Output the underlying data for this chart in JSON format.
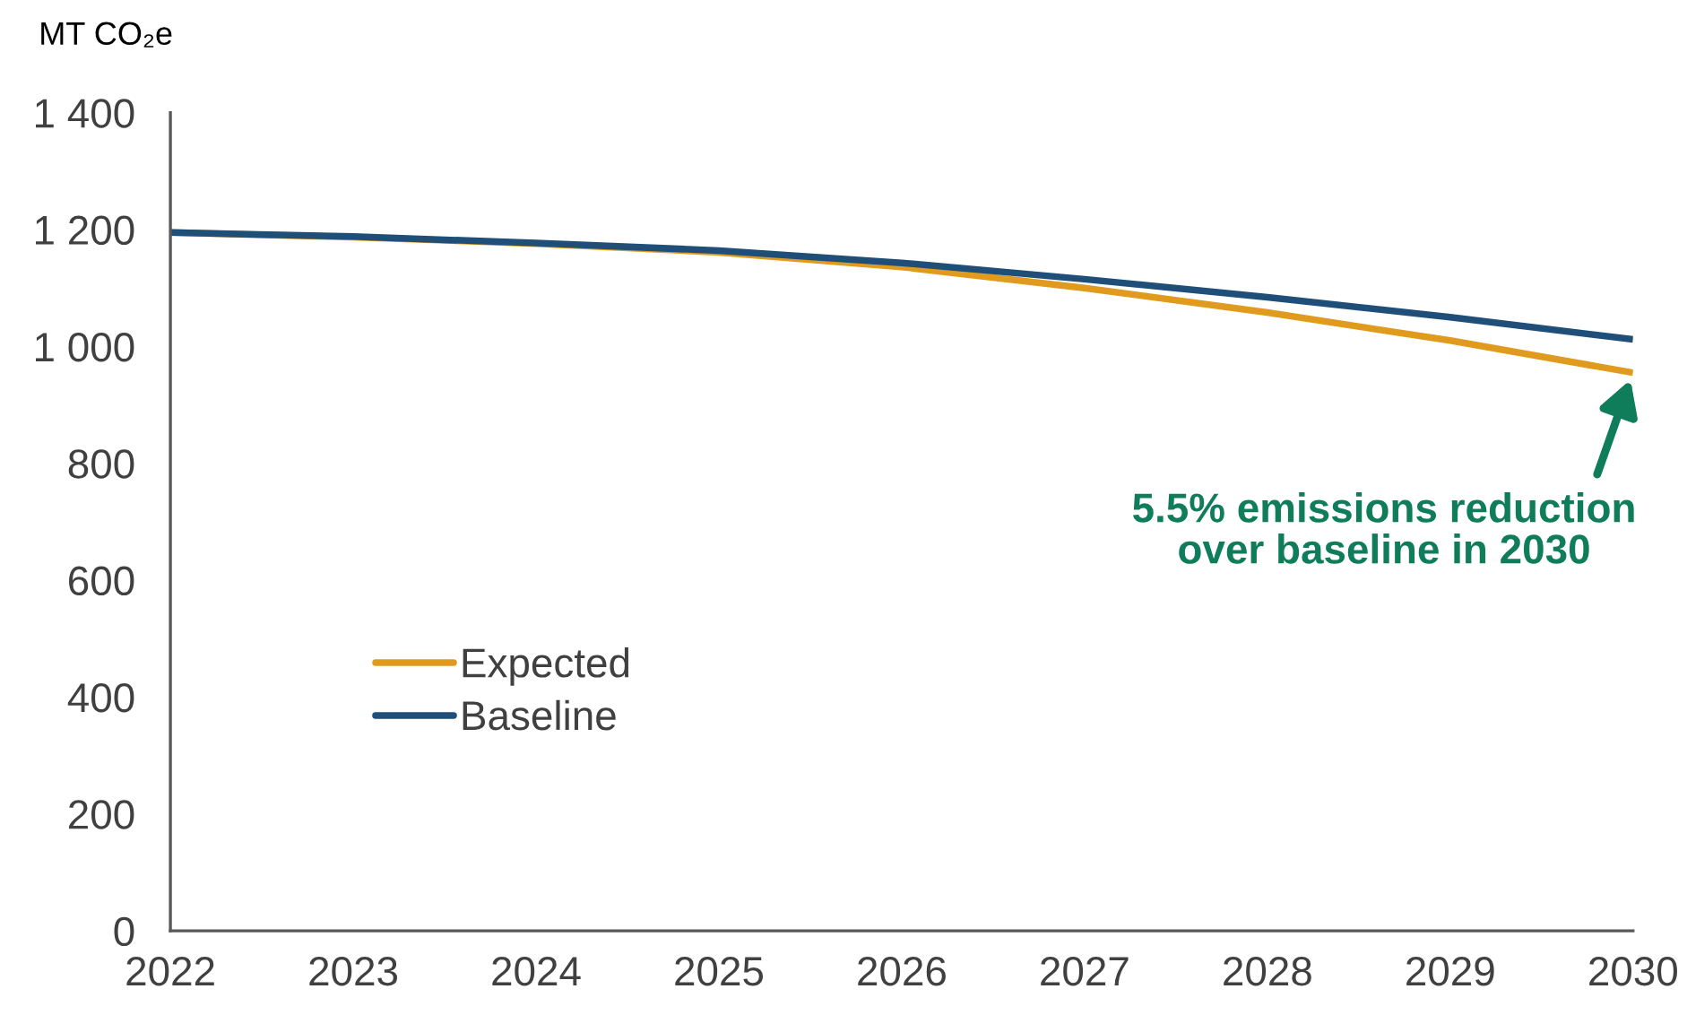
{
  "chart_data": {
    "type": "line",
    "ylabel": "MT CO₂e",
    "x": [
      2022,
      2023,
      2024,
      2025,
      2026,
      2027,
      2028,
      2029,
      2030
    ],
    "series": [
      {
        "name": "Expected",
        "color": "#e09b1e",
        "values": [
          1195,
          1187,
          1176,
          1161,
          1136,
          1100,
          1058,
          1010,
          955
        ]
      },
      {
        "name": "Baseline",
        "color": "#1f4e79",
        "values": [
          1195,
          1188,
          1177,
          1164,
          1143,
          1115,
          1084,
          1050,
          1012
        ]
      }
    ],
    "xlim": [
      2022,
      2030
    ],
    "xticks": [
      2022,
      2023,
      2024,
      2025,
      2026,
      2027,
      2028,
      2029,
      2030
    ],
    "ylim": [
      0,
      1400
    ],
    "yticks": [
      0,
      200,
      400,
      600,
      800,
      {
        "value": 1000,
        "label": "1 000"
      },
      {
        "value": 1200,
        "label": "1 200"
      },
      {
        "value": 1400,
        "label": "1 400"
      }
    ],
    "annotations": [
      {
        "text": "5.5% emissions reduction\nover baseline in 2030",
        "x": 2030,
        "y": 955
      }
    ],
    "legend": "bottom left",
    "grid": false,
    "line_style": "solid"
  }
}
